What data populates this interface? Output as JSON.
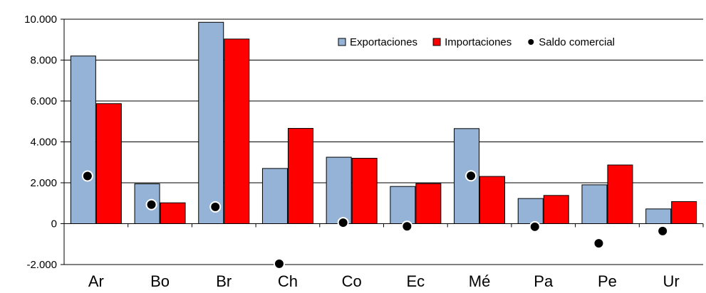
{
  "chart_data": {
    "type": "bar",
    "categories": [
      "Ar",
      "Bo",
      "Br",
      "Ch",
      "Co",
      "Ec",
      "Mé",
      "Pa",
      "Pe",
      "Ur"
    ],
    "series": [
      {
        "name": "Exportaciones",
        "kind": "bar",
        "color": "#95b3d7",
        "values": [
          8200,
          1950,
          9850,
          2700,
          3250,
          1820,
          4650,
          1230,
          1900,
          720
        ]
      },
      {
        "name": "Importaciones",
        "kind": "bar",
        "color": "#ff0000",
        "values": [
          5870,
          1020,
          9030,
          4660,
          3200,
          1960,
          2310,
          1380,
          2870,
          1080
        ]
      },
      {
        "name": "Saldo comercial",
        "kind": "point",
        "color": "#000000",
        "values": [
          2330,
          930,
          820,
          -1960,
          50,
          -130,
          2340,
          -150,
          -960,
          -360
        ]
      }
    ],
    "y_ticks": [
      -2000,
      0,
      2000,
      4000,
      6000,
      8000,
      10000
    ],
    "y_tick_labels": [
      "-2.000",
      "0",
      "2.000",
      "4.000",
      "6.000",
      "8.000",
      "10.000"
    ],
    "ylim": [
      -2000,
      10000
    ],
    "grid": true,
    "legend_position": "top-right",
    "title": "",
    "xlabel": "",
    "ylabel": ""
  }
}
